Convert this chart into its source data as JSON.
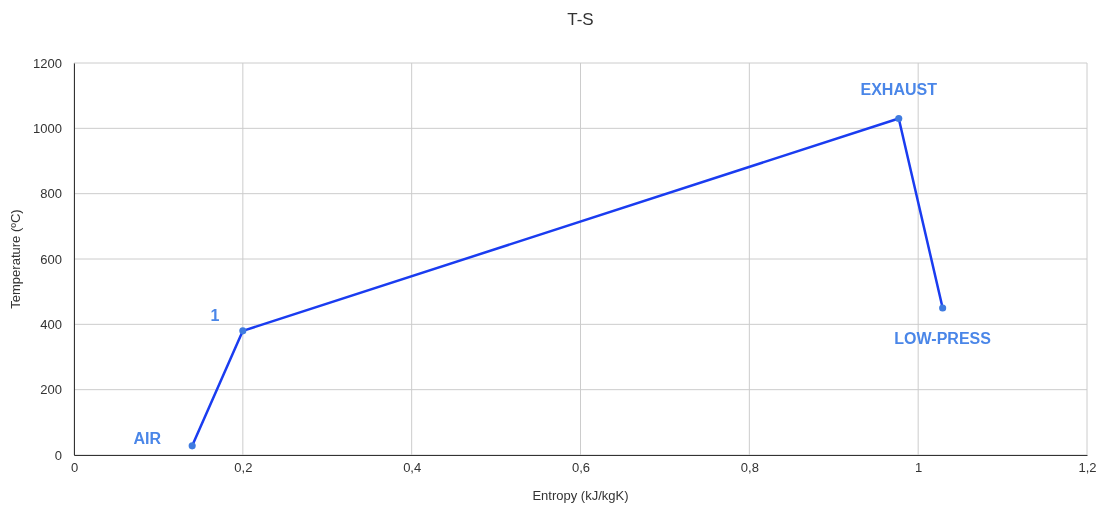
{
  "chart_data": {
    "type": "line",
    "title": "T-S",
    "xlabel": "Entropy (kJ/kgK)",
    "ylabel": "Temperature (ºC)",
    "x": [
      0.14,
      0.2,
      0.977,
      1.029
    ],
    "series": [
      {
        "color": "#1a3cf0",
        "values": [
          28,
          380,
          1030,
          450
        ]
      }
    ],
    "xlim": [
      0,
      1.2
    ],
    "xticks": [
      0,
      {
        "value": 0.2,
        "label": "0,2"
      },
      {
        "value": 0.4,
        "label": "0,4"
      },
      {
        "value": 0.6,
        "label": "0,6"
      },
      {
        "value": 0.8,
        "label": "0,8"
      },
      1,
      {
        "value": 1.2,
        "label": "1,2"
      }
    ],
    "ylim": [
      0,
      1200
    ],
    "yticks": [
      0,
      200,
      400,
      600,
      800,
      1000,
      1200
    ],
    "grid": true,
    "marker": "circle",
    "line_style": "solid",
    "annotations": [
      {
        "text": "AIR",
        "x": 0.14,
        "y": 28
      },
      {
        "text": "1",
        "x": 0.2,
        "y": 380
      },
      {
        "text": "EXHAUST",
        "x": 0.977,
        "y": 1030
      },
      {
        "text": "LOW-PRESS",
        "x": 1.029,
        "y": 450
      }
    ]
  }
}
